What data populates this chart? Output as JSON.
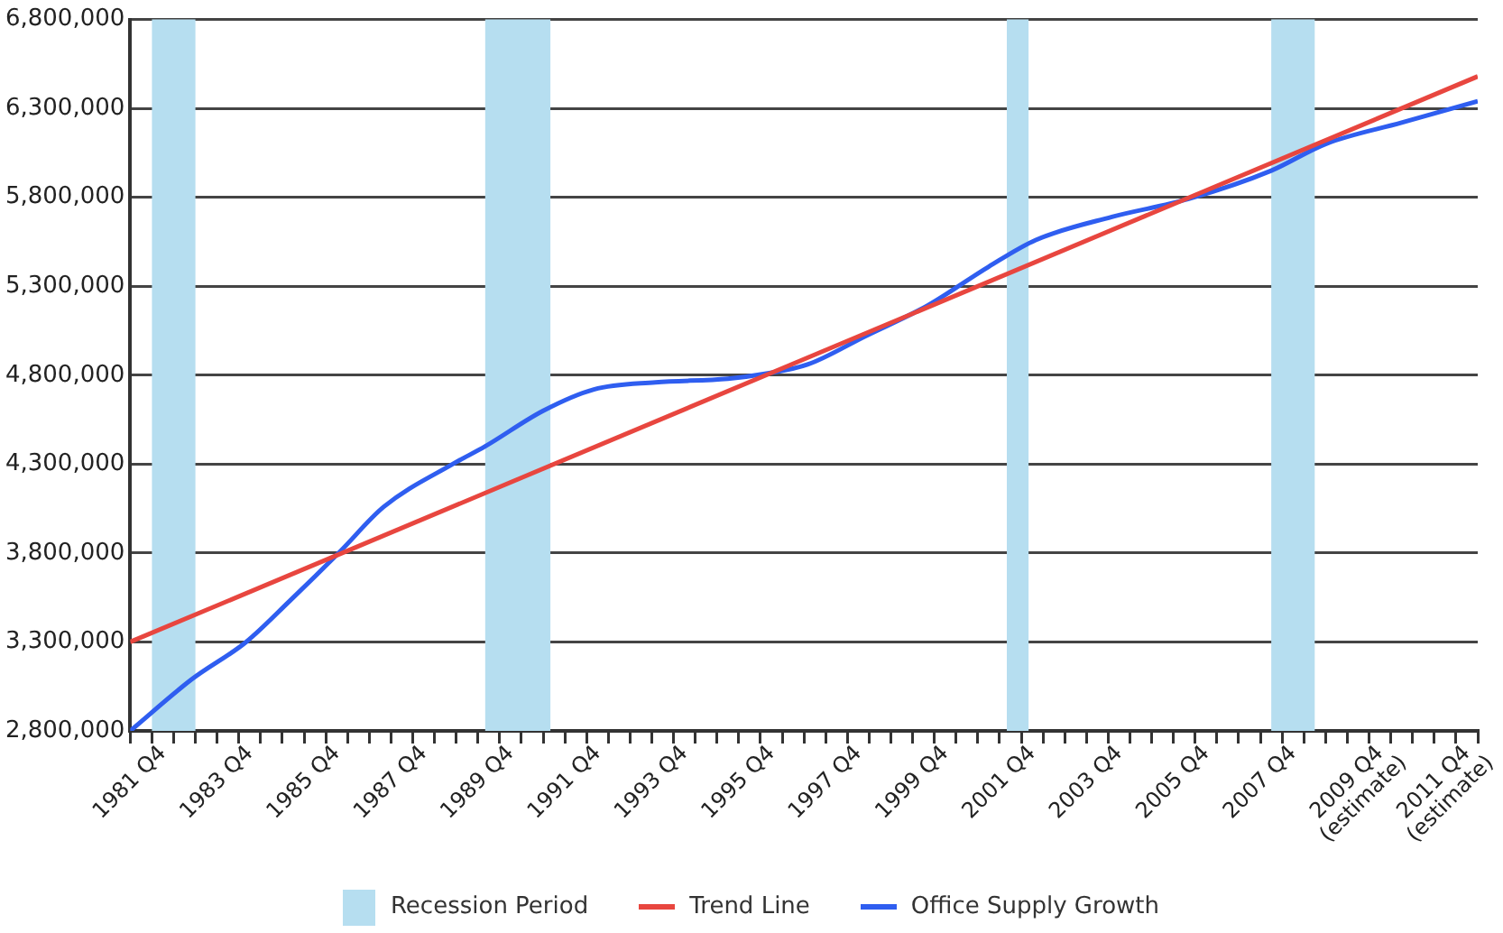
{
  "chart_data": {
    "type": "line",
    "xlim": [
      "1981-10",
      "2012-10"
    ],
    "ylim": [
      2800000,
      6800000
    ],
    "yticks": [
      {
        "value": 2800000,
        "label": "2,800,000"
      },
      {
        "value": 3300000,
        "label": "3,300,000"
      },
      {
        "value": 3800000,
        "label": "3,800,000"
      },
      {
        "value": 4300000,
        "label": "4,300,000"
      },
      {
        "value": 4800000,
        "label": "4,800,000"
      },
      {
        "value": 5300000,
        "label": "5,300,000"
      },
      {
        "value": 5800000,
        "label": "5,800,000"
      },
      {
        "value": 6300000,
        "label": "6,300,000"
      },
      {
        "value": 6800000,
        "label": "6,800,000"
      }
    ],
    "xticks": [
      {
        "value": "1981-10",
        "label": "1981 Q4"
      },
      {
        "value": "1982-04",
        "label": null
      },
      {
        "value": "1982-10",
        "label": null
      },
      {
        "value": "1983-04",
        "label": null
      },
      {
        "value": "1983-10",
        "label": "1983 Q4"
      },
      {
        "value": "1984-04",
        "label": null
      },
      {
        "value": "1984-10",
        "label": null
      },
      {
        "value": "1985-04",
        "label": null
      },
      {
        "value": "1985-10",
        "label": "1985 Q4"
      },
      {
        "value": "1986-04",
        "label": null
      },
      {
        "value": "1986-10",
        "label": null
      },
      {
        "value": "1987-04",
        "label": null
      },
      {
        "value": "1987-10",
        "label": "1987 Q4"
      },
      {
        "value": "1988-04",
        "label": null
      },
      {
        "value": "1988-10",
        "label": null
      },
      {
        "value": "1989-04",
        "label": null
      },
      {
        "value": "1989-10",
        "label": "1989 Q4"
      },
      {
        "value": "1990-04",
        "label": null
      },
      {
        "value": "1990-10",
        "label": null
      },
      {
        "value": "1991-04",
        "label": null
      },
      {
        "value": "1991-10",
        "label": "1991 Q4"
      },
      {
        "value": "1992-04",
        "label": null
      },
      {
        "value": "1992-10",
        "label": null
      },
      {
        "value": "1993-04",
        "label": null
      },
      {
        "value": "1993-10",
        "label": "1993 Q4"
      },
      {
        "value": "1994-04",
        "label": null
      },
      {
        "value": "1994-10",
        "label": null
      },
      {
        "value": "1995-04",
        "label": null
      },
      {
        "value": "1995-10",
        "label": "1995 Q4"
      },
      {
        "value": "1996-04",
        "label": null
      },
      {
        "value": "1996-10",
        "label": null
      },
      {
        "value": "1997-04",
        "label": null
      },
      {
        "value": "1997-10",
        "label": "1997 Q4"
      },
      {
        "value": "1998-04",
        "label": null
      },
      {
        "value": "1998-10",
        "label": null
      },
      {
        "value": "1999-04",
        "label": null
      },
      {
        "value": "1999-10",
        "label": "1999 Q4"
      },
      {
        "value": "2000-04",
        "label": null
      },
      {
        "value": "2000-10",
        "label": null
      },
      {
        "value": "2001-04",
        "label": null
      },
      {
        "value": "2001-10",
        "label": "2001 Q4"
      },
      {
        "value": "2002-04",
        "label": null
      },
      {
        "value": "2002-10",
        "label": null
      },
      {
        "value": "2003-04",
        "label": null
      },
      {
        "value": "2003-10",
        "label": "2003 Q4"
      },
      {
        "value": "2004-04",
        "label": null
      },
      {
        "value": "2004-10",
        "label": null
      },
      {
        "value": "2005-04",
        "label": null
      },
      {
        "value": "2005-10",
        "label": "2005 Q4"
      },
      {
        "value": "2006-04",
        "label": null
      },
      {
        "value": "2006-10",
        "label": null
      },
      {
        "value": "2007-04",
        "label": null
      },
      {
        "value": "2007-10",
        "label": "2007 Q4"
      },
      {
        "value": "2008-04",
        "label": null
      },
      {
        "value": "2008-10",
        "label": null
      },
      {
        "value": "2009-04",
        "label": null
      },
      {
        "value": "2009-10",
        "label": "2009 Q4\n(estimate)"
      },
      {
        "value": "2010-04",
        "label": null
      },
      {
        "value": "2010-10",
        "label": null
      },
      {
        "value": "2011-04",
        "label": null
      },
      {
        "value": "2011-10",
        "label": "2011 Q4\n(estimate)"
      },
      {
        "value": "2012-04",
        "label": null
      },
      {
        "value": "2012-10",
        "label": null
      }
    ],
    "grid": "y",
    "legend": "bottom",
    "bands": [
      {
        "axis": "x",
        "from": "1982-04",
        "to": "1983-04",
        "label": "Recession Period",
        "color": "#b6def0"
      },
      {
        "axis": "x",
        "from": "1989-12",
        "to": "1991-06",
        "color": "#b6def0"
      },
      {
        "axis": "x",
        "from": "2001-12",
        "to": "2002-06",
        "color": "#b6def0"
      },
      {
        "axis": "x",
        "from": "2008-01",
        "to": "2009-01",
        "color": "#b6def0"
      }
    ],
    "series": [
      {
        "name": "Trend Line",
        "color": "#e8463f",
        "x": [
          "1981-10",
          "2012-10"
        ],
        "values": [
          3300000,
          6480000
        ]
      },
      {
        "name": "Office Supply Growth",
        "color": "#2f5ef0",
        "x": [
          "1981-10",
          "1983-03",
          "1984-06",
          "1985-06",
          "1986-08",
          "1987-08",
          "1989-03",
          "1989-12",
          "1991-04",
          "1992-06",
          "1993-11",
          "1995-07",
          "1996-06",
          "1997-05",
          "1998-09",
          "2000-02",
          "2001-07",
          "2002-08",
          "2004-05",
          "2006-02",
          "2008-01",
          "2009-04",
          "2011-01",
          "2012-10"
        ],
        "values": [
          2800000,
          3090000,
          3300000,
          3530000,
          3810000,
          4060000,
          4300000,
          4400000,
          4600000,
          4720000,
          4760000,
          4780000,
          4810000,
          4860000,
          5020000,
          5190000,
          5410000,
          5560000,
          5690000,
          5790000,
          5950000,
          6100000,
          6220000,
          6340000
        ]
      }
    ]
  }
}
